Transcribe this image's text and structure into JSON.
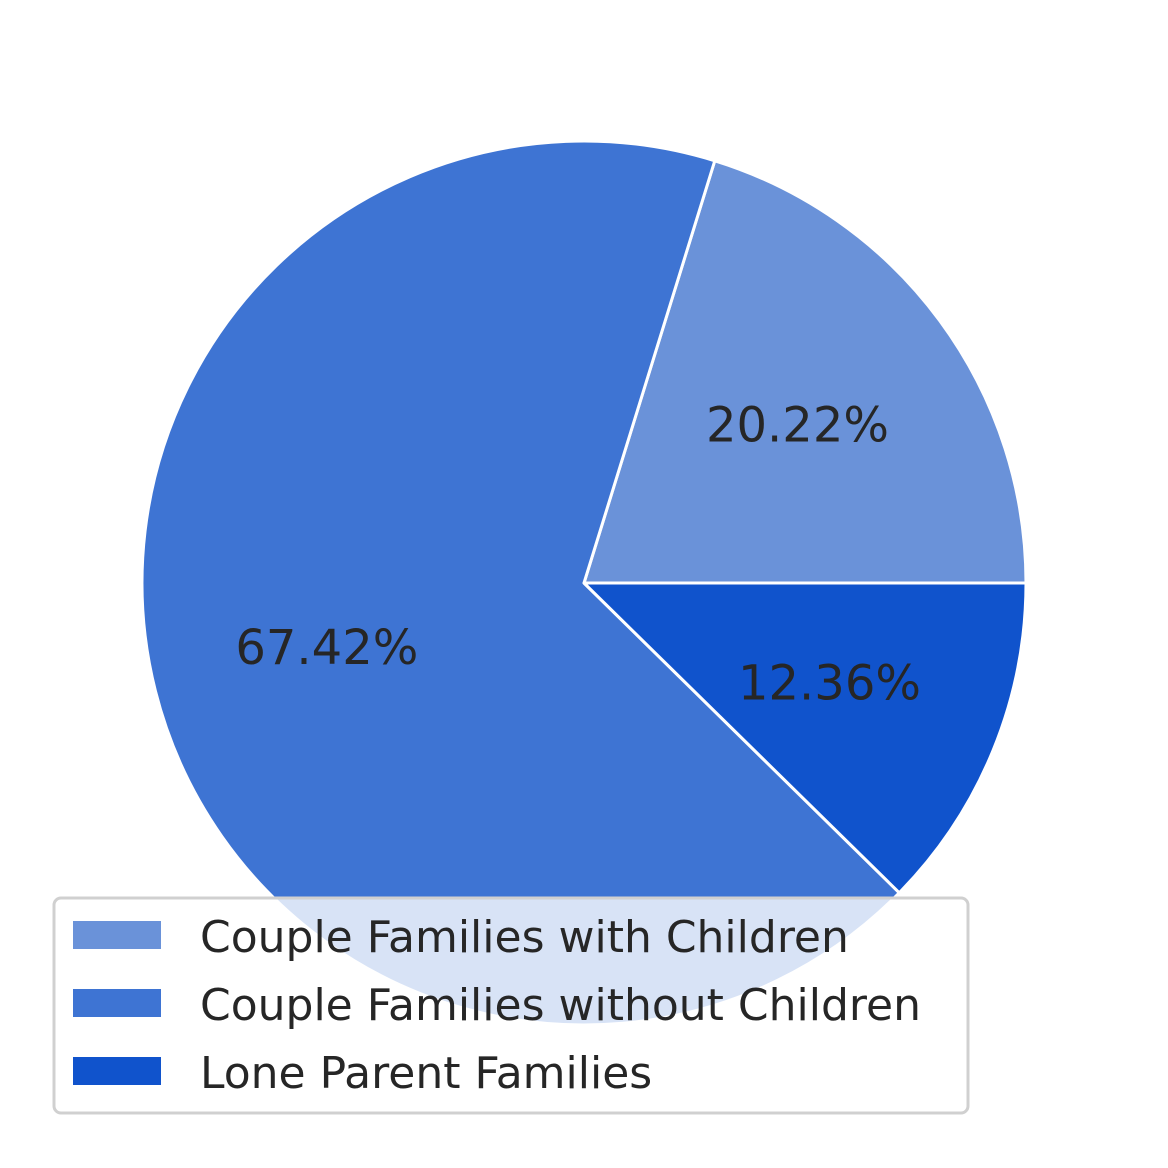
{
  "chart_data": {
    "type": "pie",
    "title": "",
    "slices": [
      {
        "label": "Couple Families with Children",
        "value": 20.22,
        "display": "20.22%",
        "color": "#6a92d9"
      },
      {
        "label": "Couple Families without Children",
        "value": 67.42,
        "display": "67.42%",
        "color": "#3e74d3"
      },
      {
        "label": "Lone Parent Families",
        "value": 12.36,
        "display": "12.36%",
        "color": "#1053cc"
      }
    ],
    "start_angle_deg": 0,
    "direction": "counterclockwise",
    "slice_edge_color": "#ffffff",
    "legend": {
      "placement": "lower-left",
      "entries": [
        "Couple Families with Children",
        "Couple Families without Children",
        "Lone Parent Families"
      ]
    }
  }
}
